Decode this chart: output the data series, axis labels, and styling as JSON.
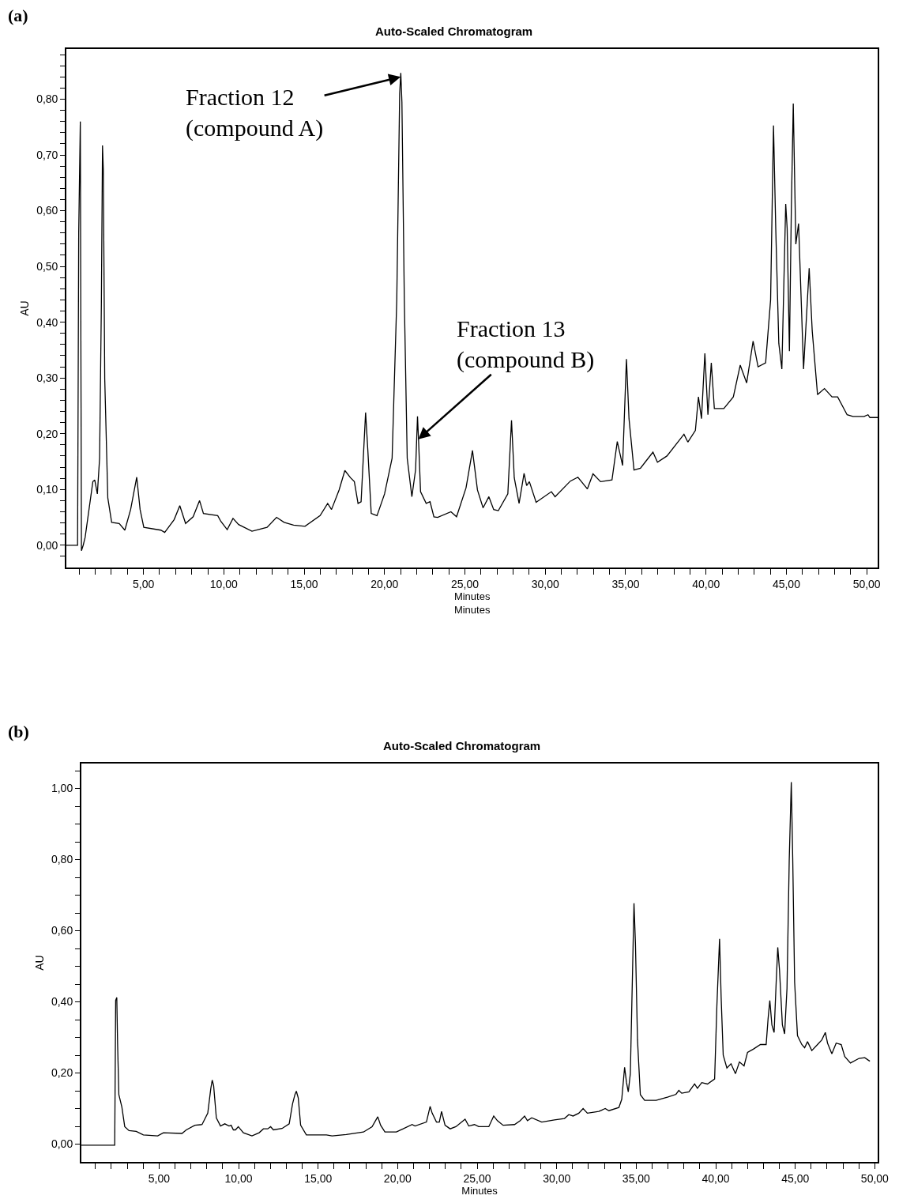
{
  "chart_data": [
    {
      "type": "line",
      "title": "Auto-Scaled Chromatogram",
      "xlabel": "Minutes\nMinutes",
      "ylabel": "AU",
      "annotations": [
        "(a)",
        {
          "text": "Fraction 12\n(compound A)",
          "x": 21.0,
          "y": 0.84
        },
        {
          "text": "Fraction 13\n(compound B)",
          "x": 22.1,
          "y": 0.19
        }
      ],
      "xlim": [
        0.2,
        50.7
      ],
      "ylim": [
        -0.04,
        0.89
      ],
      "xticks": [
        {
          "value": 1,
          "label": null
        },
        {
          "value": 2,
          "label": null
        },
        {
          "value": 3,
          "label": null
        },
        {
          "value": 4,
          "label": null
        },
        {
          "value": 5,
          "label": "5,00"
        },
        {
          "value": 6,
          "label": null
        },
        {
          "value": 7,
          "label": null
        },
        {
          "value": 8,
          "label": null
        },
        {
          "value": 9,
          "label": null
        },
        {
          "value": 10,
          "label": "10,00"
        },
        {
          "value": 11,
          "label": null
        },
        {
          "value": 12,
          "label": null
        },
        {
          "value": 13,
          "label": null
        },
        {
          "value": 14,
          "label": null
        },
        {
          "value": 15,
          "label": "15,00"
        },
        {
          "value": 16,
          "label": null
        },
        {
          "value": 17,
          "label": null
        },
        {
          "value": 18,
          "label": null
        },
        {
          "value": 19,
          "label": null
        },
        {
          "value": 20,
          "label": "20,00"
        },
        {
          "value": 21,
          "label": null
        },
        {
          "value": 22,
          "label": null
        },
        {
          "value": 23,
          "label": null
        },
        {
          "value": 24,
          "label": null
        },
        {
          "value": 25,
          "label": "25,00"
        },
        {
          "value": 26,
          "label": null
        },
        {
          "value": 27,
          "label": null
        },
        {
          "value": 28,
          "label": null
        },
        {
          "value": 29,
          "label": null
        },
        {
          "value": 30,
          "label": "30,00"
        },
        {
          "value": 31,
          "label": null
        },
        {
          "value": 32,
          "label": null
        },
        {
          "value": 33,
          "label": null
        },
        {
          "value": 34,
          "label": null
        },
        {
          "value": 35,
          "label": "35,00"
        },
        {
          "value": 36,
          "label": null
        },
        {
          "value": 37,
          "label": null
        },
        {
          "value": 38,
          "label": null
        },
        {
          "value": 39,
          "label": null
        },
        {
          "value": 40,
          "label": "40,00"
        },
        {
          "value": 41,
          "label": null
        },
        {
          "value": 42,
          "label": null
        },
        {
          "value": 43,
          "label": null
        },
        {
          "value": 44,
          "label": null
        },
        {
          "value": 45,
          "label": "45,00"
        },
        {
          "value": 46,
          "label": null
        },
        {
          "value": 47,
          "label": null
        },
        {
          "value": 48,
          "label": null
        },
        {
          "value": 49,
          "label": null
        },
        {
          "value": 50,
          "label": "50,00"
        }
      ],
      "yticks": [
        {
          "value": -0.02,
          "label": null
        },
        {
          "value": 0,
          "label": "0,00"
        },
        {
          "value": 0.02,
          "label": null
        },
        {
          "value": 0.04,
          "label": null
        },
        {
          "value": 0.06,
          "label": null
        },
        {
          "value": 0.08,
          "label": null
        },
        {
          "value": 0.1,
          "label": "0,10"
        },
        {
          "value": 0.12,
          "label": null
        },
        {
          "value": 0.14,
          "label": null
        },
        {
          "value": 0.16,
          "label": null
        },
        {
          "value": 0.18,
          "label": null
        },
        {
          "value": 0.2,
          "label": "0,20"
        },
        {
          "value": 0.22,
          "label": null
        },
        {
          "value": 0.24,
          "label": null
        },
        {
          "value": 0.26,
          "label": null
        },
        {
          "value": 0.28,
          "label": null
        },
        {
          "value": 0.3,
          "label": "0,30"
        },
        {
          "value": 0.32,
          "label": null
        },
        {
          "value": 0.34,
          "label": null
        },
        {
          "value": 0.36,
          "label": null
        },
        {
          "value": 0.38,
          "label": null
        },
        {
          "value": 0.4,
          "label": "0,40"
        },
        {
          "value": 0.42,
          "label": null
        },
        {
          "value": 0.44,
          "label": null
        },
        {
          "value": 0.46,
          "label": null
        },
        {
          "value": 0.48,
          "label": null
        },
        {
          "value": 0.5,
          "label": "0,50"
        },
        {
          "value": 0.52,
          "label": null
        },
        {
          "value": 0.54,
          "label": null
        },
        {
          "value": 0.56,
          "label": null
        },
        {
          "value": 0.58,
          "label": null
        },
        {
          "value": 0.6,
          "label": "0,60"
        },
        {
          "value": 0.62,
          "label": null
        },
        {
          "value": 0.64,
          "label": null
        },
        {
          "value": 0.66,
          "label": null
        },
        {
          "value": 0.68,
          "label": null
        },
        {
          "value": 0.7,
          "label": "0,70"
        },
        {
          "value": 0.72,
          "label": null
        },
        {
          "value": 0.74,
          "label": null
        },
        {
          "value": 0.76,
          "label": null
        },
        {
          "value": 0.78,
          "label": null
        },
        {
          "value": 0.8,
          "label": "0,80"
        },
        {
          "value": 0.82,
          "label": null
        },
        {
          "value": 0.84,
          "label": null
        },
        {
          "value": 0.86,
          "label": null
        },
        {
          "value": 0.88,
          "label": null
        }
      ],
      "series": [
        {
          "color": "#000000",
          "x": [
            0.2,
            0.9,
            0.97,
            1.07,
            1.14,
            1.25,
            1.37,
            1.85,
            1.97,
            2.13,
            2.27,
            2.38,
            2.45,
            2.5,
            2.59,
            2.78,
            3.02,
            3.49,
            3.84,
            4.2,
            4.58,
            4.79,
            5.02,
            6.08,
            6.32,
            6.91,
            7.26,
            7.62,
            8.09,
            8.49,
            8.73,
            9.62,
            9.81,
            10.21,
            10.57,
            10.92,
            11.75,
            12.69,
            13.28,
            13.75,
            14.34,
            15.05,
            15.99,
            16.46,
            16.7,
            17.17,
            17.53,
            17.88,
            18.12,
            18.35,
            18.54,
            18.82,
            18.96,
            19.17,
            19.53,
            20.0,
            20.47,
            20.76,
            20.94,
            21.01,
            21.08,
            21.23,
            21.41,
            21.7,
            21.93,
            22.05,
            22.12,
            22.24,
            22.59,
            22.83,
            23.07,
            23.3,
            24.13,
            24.48,
            25.07,
            25.47,
            25.78,
            26.13,
            26.49,
            26.79,
            27.08,
            27.67,
            27.9,
            28.07,
            28.37,
            28.68,
            28.84,
            29.01,
            29.43,
            30.38,
            30.61,
            31.56,
            32.03,
            32.62,
            32.97,
            33.44,
            34.15,
            34.48,
            34.81,
            35.05,
            35.21,
            35.52,
            35.92,
            36.27,
            36.7,
            36.98,
            37.57,
            38.63,
            38.87,
            39.34,
            39.53,
            39.72,
            39.93,
            40.12,
            40.33,
            40.52,
            41.11,
            41.7,
            42.13,
            42.53,
            42.93,
            43.24,
            43.71,
            44.02,
            44.2,
            44.34,
            44.53,
            44.72,
            44.96,
            45.05,
            45.19,
            45.31,
            45.43,
            45.59,
            45.76,
            46.07,
            46.42,
            46.61,
            46.94,
            47.37,
            47.84,
            48.19,
            48.78,
            49.14,
            49.84,
            50.08,
            50.2,
            50.7
          ],
          "values": [
            0.0,
            0.0,
            0.56,
            0.76,
            -0.01,
            0.0,
            0.014,
            0.114,
            0.117,
            0.092,
            0.156,
            0.433,
            0.717,
            0.675,
            0.298,
            0.085,
            0.041,
            0.039,
            0.027,
            0.064,
            0.122,
            0.064,
            0.032,
            0.027,
            0.023,
            0.046,
            0.071,
            0.039,
            0.051,
            0.08,
            0.057,
            0.053,
            0.043,
            0.028,
            0.048,
            0.037,
            0.025,
            0.032,
            0.05,
            0.041,
            0.036,
            0.034,
            0.053,
            0.075,
            0.064,
            0.099,
            0.134,
            0.121,
            0.114,
            0.075,
            0.078,
            0.238,
            0.17,
            0.057,
            0.053,
            0.092,
            0.156,
            0.44,
            0.81,
            0.847,
            0.795,
            0.44,
            0.156,
            0.087,
            0.135,
            0.231,
            0.185,
            0.096,
            0.075,
            0.078,
            0.051,
            0.05,
            0.06,
            0.051,
            0.103,
            0.17,
            0.099,
            0.067,
            0.087,
            0.064,
            0.062,
            0.092,
            0.224,
            0.121,
            0.075,
            0.129,
            0.107,
            0.114,
            0.077,
            0.096,
            0.087,
            0.115,
            0.122,
            0.101,
            0.128,
            0.114,
            0.117,
            0.186,
            0.143,
            0.334,
            0.227,
            0.135,
            0.138,
            0.151,
            0.167,
            0.149,
            0.16,
            0.199,
            0.185,
            0.206,
            0.266,
            0.227,
            0.344,
            0.234,
            0.327,
            0.245,
            0.245,
            0.266,
            0.323,
            0.291,
            0.366,
            0.32,
            0.327,
            0.44,
            0.753,
            0.568,
            0.362,
            0.316,
            0.612,
            0.568,
            0.348,
            0.604,
            0.792,
            0.54,
            0.577,
            0.316,
            0.497,
            0.384,
            0.27,
            0.281,
            0.266,
            0.266,
            0.234,
            0.231,
            0.231,
            0.234,
            0.229,
            0.229
          ]
        }
      ]
    },
    {
      "type": "line",
      "title": "Auto-Scaled Chromatogram",
      "xlabel": "Minutes",
      "ylabel": "AU",
      "annotations": [
        "(b)"
      ],
      "xlim": [
        0.1,
        50.2
      ],
      "ylim": [
        -0.05,
        1.07
      ],
      "xticks": [
        {
          "value": 1,
          "label": null
        },
        {
          "value": 2,
          "label": null
        },
        {
          "value": 3,
          "label": null
        },
        {
          "value": 4,
          "label": null
        },
        {
          "value": 5,
          "label": "5,00"
        },
        {
          "value": 6,
          "label": null
        },
        {
          "value": 7,
          "label": null
        },
        {
          "value": 8,
          "label": null
        },
        {
          "value": 9,
          "label": null
        },
        {
          "value": 10,
          "label": "10,00"
        },
        {
          "value": 11,
          "label": null
        },
        {
          "value": 12,
          "label": null
        },
        {
          "value": 13,
          "label": null
        },
        {
          "value": 14,
          "label": null
        },
        {
          "value": 15,
          "label": "15,00"
        },
        {
          "value": 16,
          "label": null
        },
        {
          "value": 17,
          "label": null
        },
        {
          "value": 18,
          "label": null
        },
        {
          "value": 19,
          "label": null
        },
        {
          "value": 20,
          "label": "20,00"
        },
        {
          "value": 21,
          "label": null
        },
        {
          "value": 22,
          "label": null
        },
        {
          "value": 23,
          "label": null
        },
        {
          "value": 24,
          "label": null
        },
        {
          "value": 25,
          "label": "25,00"
        },
        {
          "value": 26,
          "label": null
        },
        {
          "value": 27,
          "label": null
        },
        {
          "value": 28,
          "label": null
        },
        {
          "value": 29,
          "label": null
        },
        {
          "value": 30,
          "label": "30,00"
        },
        {
          "value": 31,
          "label": null
        },
        {
          "value": 32,
          "label": null
        },
        {
          "value": 33,
          "label": null
        },
        {
          "value": 34,
          "label": null
        },
        {
          "value": 35,
          "label": "35,00"
        },
        {
          "value": 36,
          "label": null
        },
        {
          "value": 37,
          "label": null
        },
        {
          "value": 38,
          "label": null
        },
        {
          "value": 39,
          "label": null
        },
        {
          "value": 40,
          "label": "40,00"
        },
        {
          "value": 41,
          "label": null
        },
        {
          "value": 42,
          "label": null
        },
        {
          "value": 43,
          "label": null
        },
        {
          "value": 44,
          "label": null
        },
        {
          "value": 45,
          "label": "45,00"
        },
        {
          "value": 46,
          "label": null
        },
        {
          "value": 47,
          "label": null
        },
        {
          "value": 48,
          "label": null
        },
        {
          "value": 49,
          "label": null
        },
        {
          "value": 50,
          "label": "50,00"
        }
      ],
      "yticks": [
        {
          "value": 0,
          "label": "0,00"
        },
        {
          "value": 0.05,
          "label": null
        },
        {
          "value": 0.1,
          "label": null
        },
        {
          "value": 0.15,
          "label": null
        },
        {
          "value": 0.2,
          "label": "0,20"
        },
        {
          "value": 0.25,
          "label": null
        },
        {
          "value": 0.3,
          "label": null
        },
        {
          "value": 0.35,
          "label": null
        },
        {
          "value": 0.4,
          "label": "0,40"
        },
        {
          "value": 0.45,
          "label": null
        },
        {
          "value": 0.5,
          "label": null
        },
        {
          "value": 0.55,
          "label": null
        },
        {
          "value": 0.6,
          "label": "0,60"
        },
        {
          "value": 0.65,
          "label": null
        },
        {
          "value": 0.7,
          "label": null
        },
        {
          "value": 0.75,
          "label": null
        },
        {
          "value": 0.8,
          "label": "0,80"
        },
        {
          "value": 0.85,
          "label": null
        },
        {
          "value": 0.9,
          "label": null
        },
        {
          "value": 0.95,
          "label": null
        },
        {
          "value": 1.0,
          "label": "1,00"
        },
        {
          "value": 1.05,
          "label": null
        }
      ],
      "series": [
        {
          "color": "#000000",
          "x": [
            0.1,
            2.21,
            2.27,
            2.34,
            2.39,
            2.47,
            2.66,
            2.84,
            3.11,
            3.56,
            4.01,
            4.91,
            5.27,
            6.44,
            6.71,
            7.25,
            7.7,
            8.06,
            8.25,
            8.34,
            8.43,
            8.6,
            8.86,
            9.13,
            9.4,
            9.53,
            9.67,
            9.8,
            9.98,
            10.3,
            10.84,
            11.29,
            11.56,
            11.83,
            12.01,
            12.19,
            12.73,
            13.18,
            13.39,
            13.54,
            13.63,
            13.75,
            13.9,
            14.26,
            15.52,
            15.88,
            16.77,
            17.85,
            18.39,
            18.75,
            18.93,
            19.2,
            19.92,
            20.91,
            21.09,
            21.81,
            22.04,
            22.17,
            22.44,
            22.62,
            22.76,
            22.98,
            23.3,
            23.66,
            24.24,
            24.47,
            24.83,
            25.1,
            25.73,
            26.04,
            26.27,
            26.63,
            27.35,
            27.71,
            27.98,
            28.16,
            28.43,
            29.06,
            29.86,
            30.49,
            30.76,
            31.03,
            31.39,
            31.66,
            31.93,
            32.65,
            33.05,
            33.28,
            33.91,
            34.09,
            34.27,
            34.39,
            34.5,
            34.63,
            34.77,
            34.86,
            34.95,
            35.08,
            35.26,
            35.53,
            36.25,
            36.96,
            37.5,
            37.68,
            37.86,
            38.31,
            38.67,
            38.85,
            39.12,
            39.48,
            39.93,
            40.07,
            40.24,
            40.34,
            40.47,
            40.7,
            40.96,
            41.24,
            41.49,
            41.78,
            42.0,
            42.36,
            42.81,
            43.17,
            43.29,
            43.4,
            43.53,
            43.67,
            43.8,
            43.9,
            44.01,
            44.19,
            44.33,
            44.48,
            44.62,
            44.75,
            44.84,
            44.96,
            45.14,
            45.41,
            45.59,
            45.77,
            46.04,
            46.4,
            46.67,
            46.89,
            47.03,
            47.3,
            47.57,
            47.89,
            48.11,
            48.47,
            49.01,
            49.37,
            49.69
          ],
          "values": [
            -0.003,
            -0.003,
            0.404,
            0.412,
            0.284,
            0.139,
            0.104,
            0.049,
            0.038,
            0.036,
            0.026,
            0.023,
            0.032,
            0.03,
            0.04,
            0.053,
            0.055,
            0.087,
            0.156,
            0.18,
            0.164,
            0.074,
            0.051,
            0.057,
            0.051,
            0.053,
            0.04,
            0.04,
            0.049,
            0.032,
            0.023,
            0.032,
            0.043,
            0.043,
            0.049,
            0.04,
            0.044,
            0.057,
            0.113,
            0.139,
            0.149,
            0.13,
            0.053,
            0.026,
            0.026,
            0.023,
            0.027,
            0.034,
            0.049,
            0.077,
            0.053,
            0.034,
            0.034,
            0.055,
            0.051,
            0.062,
            0.106,
            0.087,
            0.062,
            0.062,
            0.092,
            0.053,
            0.043,
            0.049,
            0.07,
            0.051,
            0.055,
            0.049,
            0.049,
            0.079,
            0.066,
            0.053,
            0.055,
            0.066,
            0.079,
            0.066,
            0.074,
            0.062,
            0.068,
            0.072,
            0.083,
            0.079,
            0.087,
            0.1,
            0.087,
            0.092,
            0.1,
            0.094,
            0.103,
            0.126,
            0.216,
            0.173,
            0.147,
            0.198,
            0.489,
            0.677,
            0.566,
            0.293,
            0.139,
            0.123,
            0.123,
            0.132,
            0.14,
            0.151,
            0.143,
            0.147,
            0.169,
            0.157,
            0.173,
            0.169,
            0.183,
            0.387,
            0.577,
            0.412,
            0.25,
            0.214,
            0.226,
            0.198,
            0.231,
            0.22,
            0.258,
            0.267,
            0.28,
            0.28,
            0.352,
            0.404,
            0.335,
            0.314,
            0.455,
            0.553,
            0.489,
            0.335,
            0.31,
            0.438,
            0.797,
            1.018,
            0.806,
            0.455,
            0.305,
            0.28,
            0.271,
            0.288,
            0.263,
            0.28,
            0.293,
            0.314,
            0.284,
            0.254,
            0.284,
            0.28,
            0.246,
            0.228,
            0.241,
            0.243,
            0.233
          ]
        }
      ]
    }
  ]
}
